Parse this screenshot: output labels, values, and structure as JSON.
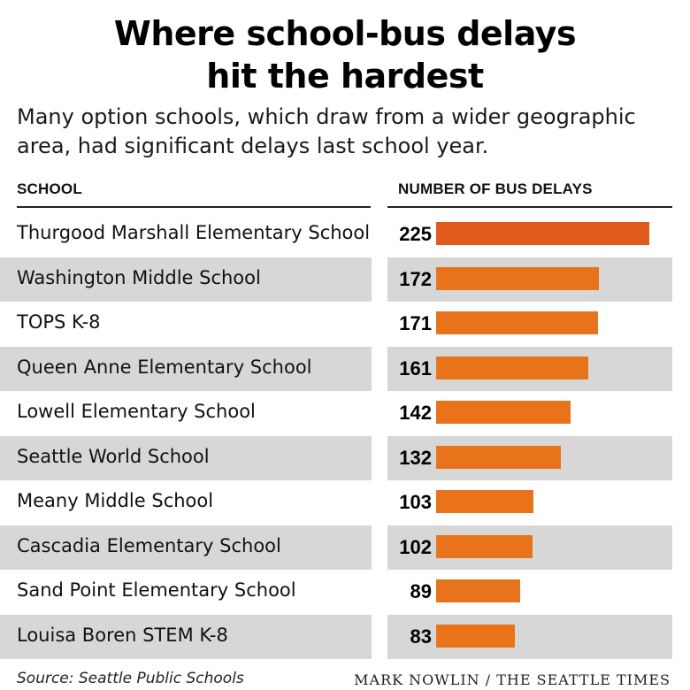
{
  "header": {
    "title_line1": "Where school-bus delays",
    "title_line2": "hit the hardest",
    "subtitle": "Many option schools, which draw from a wider geographic area, had significant delays last school year."
  },
  "columns": {
    "school": "SCHOOL",
    "delays": "NUMBER OF BUS DELAYS"
  },
  "footer": {
    "source": "Source: Seattle Public Schools",
    "credit": "MARK NOWLIN / THE SEATTLE TIMES"
  },
  "colors": {
    "bar": "#e8731a",
    "bar_top": "#e05a1c",
    "shade": "#d7d7d7"
  },
  "chart_data": {
    "type": "bar",
    "orientation": "horizontal",
    "title": "Where school-bus delays hit the hardest",
    "categories": [
      "Thurgood Marshall Elementary School",
      "Washington Middle School",
      "TOPS K-8",
      "Queen Anne Elementary School",
      "Lowell Elementary School",
      "Seattle World School",
      "Meany Middle School",
      "Cascadia Elementary School",
      "Sand Point Elementary School",
      "Louisa Boren STEM K-8"
    ],
    "values": [
      225,
      172,
      171,
      161,
      142,
      132,
      103,
      102,
      89,
      83
    ],
    "value_labels": [
      "225",
      "172",
      "171",
      "161",
      "142",
      "132",
      "103",
      "102",
      "89",
      "83"
    ],
    "xlim": [
      0,
      225
    ],
    "grid": false,
    "legend": "none"
  }
}
